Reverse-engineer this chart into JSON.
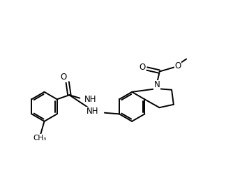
{
  "background": "#ffffff",
  "line_color": "#000000",
  "line_width": 1.4,
  "figsize": [
    3.24,
    2.48
  ],
  "dpi": 100,
  "xlim": [
    0.0,
    9.5
  ],
  "ylim": [
    0.5,
    7.5
  ]
}
